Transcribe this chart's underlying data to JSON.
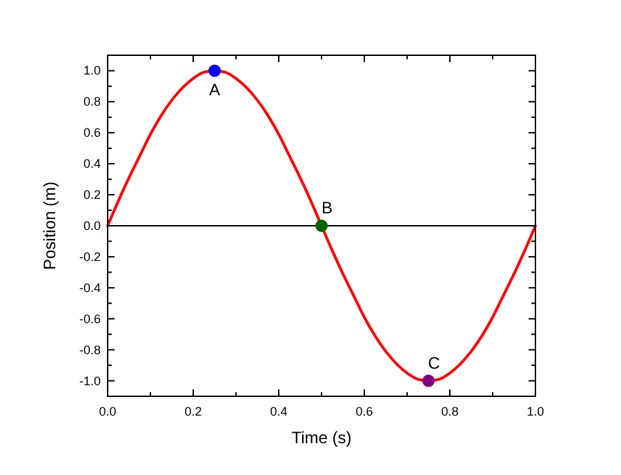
{
  "chart_data": {
    "type": "line",
    "xlabel": "Time (s)",
    "ylabel": "Position (m)",
    "xlim": [
      0,
      1
    ],
    "ylim": [
      -1.1,
      1.1
    ],
    "xticks": [
      {
        "value": 0,
        "label": "0.0"
      },
      {
        "value": 0.1,
        "label": null
      },
      0.2,
      {
        "value": 0.3,
        "label": null
      },
      0.4,
      {
        "value": 0.5,
        "label": null
      },
      0.6,
      {
        "value": 0.7,
        "label": null
      },
      0.8,
      {
        "value": 0.9,
        "label": null
      },
      {
        "value": 1,
        "label": "1.0"
      }
    ],
    "yticks": [
      {
        "value": -1,
        "label": "-1.0"
      },
      {
        "value": -0.9,
        "label": null
      },
      -0.8,
      {
        "value": -0.7,
        "label": null
      },
      -0.6,
      {
        "value": -0.5,
        "label": null
      },
      -0.4,
      {
        "value": -0.3,
        "label": null
      },
      -0.2,
      {
        "value": -0.1,
        "label": null
      },
      {
        "value": 0,
        "label": "0.0"
      },
      {
        "value": 0.1,
        "label": null
      },
      0.2,
      {
        "value": 0.3,
        "label": null
      },
      0.4,
      {
        "value": 0.5,
        "label": null
      },
      0.6,
      {
        "value": 0.7,
        "label": null
      },
      0.8,
      {
        "value": 0.9,
        "label": null
      },
      {
        "value": 1,
        "label": "1.0"
      }
    ],
    "grid": false,
    "ref_lines": [
      {
        "axis": "y",
        "value": 0,
        "color": "#000000"
      }
    ],
    "series": [
      {
        "color": "#ff0000",
        "marker": "none",
        "line_style": "solid",
        "x": [
          0,
          0.025,
          0.05,
          0.075,
          0.1,
          0.125,
          0.15,
          0.175,
          0.2,
          0.225,
          0.25,
          0.275,
          0.3,
          0.325,
          0.35,
          0.375,
          0.4,
          0.425,
          0.45,
          0.475,
          0.5,
          0.525,
          0.55,
          0.575,
          0.6,
          0.625,
          0.65,
          0.675,
          0.7,
          0.725,
          0.75,
          0.775,
          0.8,
          0.825,
          0.85,
          0.875,
          0.9,
          0.925,
          0.95,
          0.975,
          1
        ],
        "values": [
          0,
          0.16,
          0.31,
          0.45,
          0.59,
          0.71,
          0.81,
          0.89,
          0.95,
          0.99,
          1,
          0.99,
          0.95,
          0.89,
          0.81,
          0.71,
          0.59,
          0.45,
          0.31,
          0.16,
          0,
          -0.16,
          -0.31,
          -0.45,
          -0.59,
          -0.71,
          -0.81,
          -0.89,
          -0.95,
          -0.99,
          -1,
          -0.99,
          -0.95,
          -0.89,
          -0.81,
          -0.71,
          -0.59,
          -0.45,
          -0.31,
          -0.16,
          0
        ]
      },
      {
        "type": "scatter",
        "marker": "circle",
        "x": [
          0.25,
          0.5,
          0.75
        ],
        "values": [
          1,
          0,
          -1
        ],
        "colors": [
          "#0000ff",
          "#006400",
          "#800080"
        ]
      }
    ],
    "annotations": [
      {
        "text": "A",
        "x": 0.25,
        "y": 1
      },
      {
        "text": "B",
        "x": 0.5,
        "y": 0
      },
      {
        "text": "C",
        "x": 0.75,
        "y": -1
      }
    ]
  }
}
